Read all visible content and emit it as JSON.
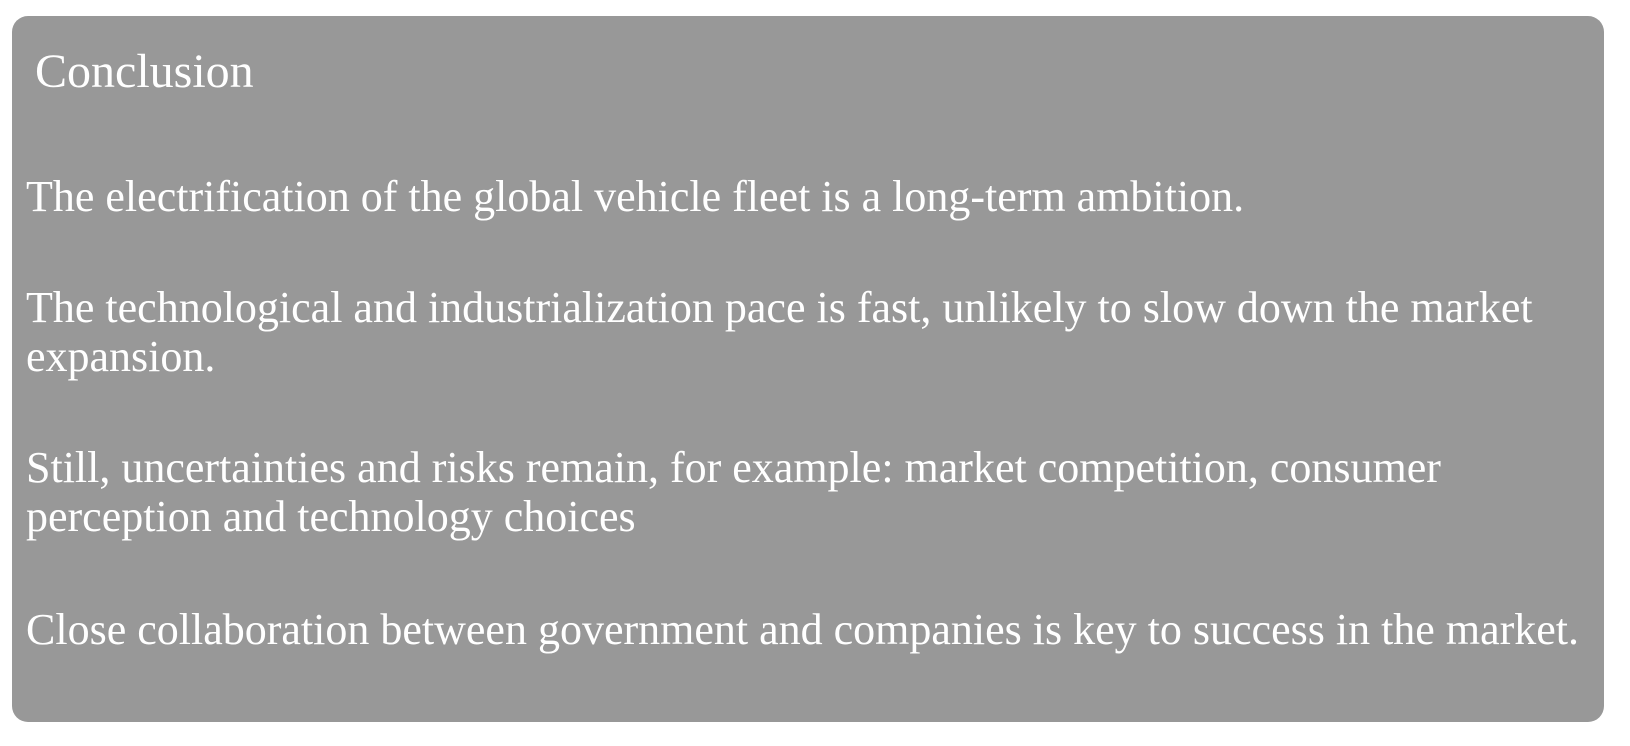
{
  "slide": {
    "title": "Conclusion",
    "paragraphs": [
      "The electrification of the global vehicle fleet is a long-term ambition.",
      "The technological and industrialization pace is fast, unlikely to slow down the market expansion.",
      "Still, uncertainties and risks remain, for example: market competition, consumer perception and technology choices",
      "Close collaboration between government and companies is key to success in the market."
    ]
  },
  "colors": {
    "card_background": "#989898",
    "text": "#ffffff",
    "page_background": "#ffffff"
  }
}
